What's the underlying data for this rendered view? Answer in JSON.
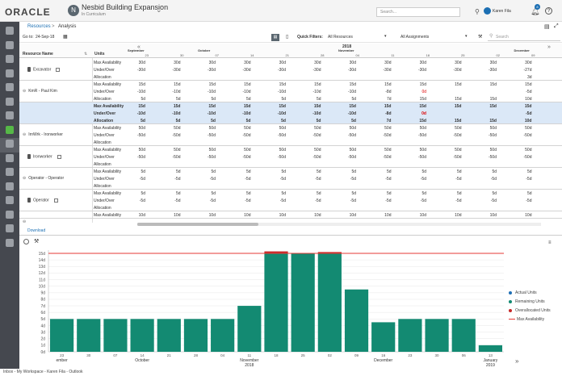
{
  "header": {
    "logo": "ORACLE",
    "project_initial": "N",
    "project_title": "Nesbid Building Expansion",
    "project_subtitle": "In Curriculum",
    "search_placeholder": "Search...",
    "user_name": "Karen Fila",
    "notification_count": "8",
    "help": "?"
  },
  "sidebar": [
    "home-icon",
    "chart-icon",
    "bank-icon",
    "globe-icon",
    "people-icon",
    "calendar-icon",
    "document-icon",
    "resources-icon",
    "list-icon",
    "gantt-icon",
    "hierarchy-icon",
    "report-icon",
    "clipboard-icon",
    "code-icon",
    "settings-icon",
    "more-icon"
  ],
  "breadcrumb": {
    "root": "Resources",
    "sep": ">",
    "current": "Analysis"
  },
  "toolbar": {
    "goto_label": "Go to:",
    "goto_date": "24-Sep-18",
    "quick_filters_label": "Quick Filters:",
    "quick_filters_value": "All Resources",
    "assignments_value": "All Assignments",
    "search_placeholder": "Search"
  },
  "grid": {
    "col_resource": "Resource Name",
    "col_units": "Units",
    "year": "2018",
    "months": [
      {
        "label": "September",
        "col": 0
      },
      {
        "label": "October",
        "col": 2
      },
      {
        "label": "November",
        "col": 6
      },
      {
        "label": "December",
        "col": 11
      }
    ],
    "days": [
      "23",
      "30",
      "07",
      "14",
      "21",
      "28",
      "04",
      "11",
      "18",
      "25",
      "02",
      "09"
    ],
    "groups": [
      {
        "name": "Excavator",
        "type": "resource",
        "rows": [
          {
            "label": "Max Availability",
            "values": [
              "30d",
              "30d",
              "30d",
              "30d",
              "30d",
              "30d",
              "30d",
              "30d",
              "30d",
              "30d",
              "30d",
              "30d"
            ]
          },
          {
            "label": "Under/Over",
            "values": [
              "-30d",
              "-30d",
              "-30d",
              "-30d",
              "-30d",
              "-30d",
              "-30d",
              "-30d",
              "-30d",
              "-30d",
              "-30d",
              "-27d"
            ]
          },
          {
            "label": "Allocation",
            "values": [
              "",
              "",
              "",
              "",
              "",
              "",
              "",
              "",
              "",
              "",
              "",
              "3d"
            ]
          }
        ]
      },
      {
        "name": "KmR - Paul Kim",
        "type": "role",
        "rows": [
          {
            "label": "Max Availability",
            "values": [
              "15d",
              "15d",
              "15d",
              "15d",
              "15d",
              "15d",
              "15d",
              "15d",
              "15d",
              "15d",
              "15d",
              "15d"
            ]
          },
          {
            "label": "Under/Over",
            "values": [
              "-10d",
              "-10d",
              "-10d",
              "-10d",
              "-10d",
              "-10d",
              "-10d",
              "-8d",
              "0d",
              "",
              "",
              "-5d"
            ]
          },
          {
            "label": "Allocation",
            "values": [
              "5d",
              "5d",
              "5d",
              "5d",
              "5d",
              "5d",
              "5d",
              "7d",
              "15d",
              "15d",
              "15d",
              "10d"
            ]
          }
        ]
      },
      {
        "name": "Paul Kim",
        "type": "resource",
        "selected": true,
        "rows": [
          {
            "label": "Max Availability",
            "values": [
              "15d",
              "15d",
              "15d",
              "15d",
              "15d",
              "15d",
              "15d",
              "15d",
              "15d",
              "15d",
              "15d",
              "15d"
            ]
          },
          {
            "label": "Under/Over",
            "values": [
              "-10d",
              "-10d",
              "-10d",
              "-10d",
              "-10d",
              "-10d",
              "-10d",
              "-8d",
              "0d",
              "",
              "",
              "-5d"
            ]
          },
          {
            "label": "Allocation",
            "values": [
              "5d",
              "5d",
              "5d",
              "5d",
              "5d",
              "5d",
              "5d",
              "7d",
              "15d",
              "15d",
              "15d",
              "10d"
            ]
          }
        ]
      },
      {
        "name": "IrnWrk - Ironworker",
        "type": "role",
        "rows": [
          {
            "label": "Max Availability",
            "values": [
              "50d",
              "50d",
              "50d",
              "50d",
              "50d",
              "50d",
              "50d",
              "50d",
              "50d",
              "50d",
              "50d",
              "50d"
            ]
          },
          {
            "label": "Under/Over",
            "values": [
              "-50d",
              "-50d",
              "-50d",
              "-50d",
              "-50d",
              "-50d",
              "-50d",
              "-50d",
              "-50d",
              "-50d",
              "-50d",
              "-50d"
            ]
          },
          {
            "label": "Allocation",
            "values": [
              "",
              "",
              "",
              "",
              "",
              "",
              "",
              "",
              "",
              "",
              "",
              ""
            ]
          }
        ]
      },
      {
        "name": "Ironworker",
        "type": "resource",
        "rows": [
          {
            "label": "Max Availability",
            "values": [
              "50d",
              "50d",
              "50d",
              "50d",
              "50d",
              "50d",
              "50d",
              "50d",
              "50d",
              "50d",
              "50d",
              "50d"
            ]
          },
          {
            "label": "Under/Over",
            "values": [
              "-50d",
              "-50d",
              "-50d",
              "-50d",
              "-50d",
              "-50d",
              "-50d",
              "-50d",
              "-50d",
              "-50d",
              "-50d",
              "-50d"
            ]
          },
          {
            "label": "Allocation",
            "values": [
              "",
              "",
              "",
              "",
              "",
              "",
              "",
              "",
              "",
              "",
              "",
              ""
            ]
          }
        ]
      },
      {
        "name": "Operator - Operator",
        "type": "role",
        "rows": [
          {
            "label": "Max Availability",
            "values": [
              "5d",
              "5d",
              "5d",
              "5d",
              "5d",
              "5d",
              "5d",
              "5d",
              "5d",
              "5d",
              "5d",
              "5d"
            ]
          },
          {
            "label": "Under/Over",
            "values": [
              "-5d",
              "-5d",
              "-5d",
              "-5d",
              "-5d",
              "-5d",
              "-5d",
              "-5d",
              "-5d",
              "-5d",
              "-5d",
              "-5d"
            ]
          },
          {
            "label": "Allocation",
            "values": [
              "",
              "",
              "",
              "",
              "",
              "",
              "",
              "",
              "",
              "",
              "",
              ""
            ]
          }
        ]
      },
      {
        "name": "Operator",
        "type": "resource",
        "rows": [
          {
            "label": "Max Availability",
            "values": [
              "5d",
              "5d",
              "5d",
              "5d",
              "5d",
              "5d",
              "5d",
              "5d",
              "5d",
              "5d",
              "5d",
              "5d"
            ]
          },
          {
            "label": "Under/Over",
            "values": [
              "-5d",
              "-5d",
              "-5d",
              "-5d",
              "-5d",
              "-5d",
              "-5d",
              "-5d",
              "-5d",
              "-5d",
              "-5d",
              "-5d"
            ]
          },
          {
            "label": "Allocation",
            "values": [
              "",
              "",
              "",
              "",
              "",
              "",
              "",
              "",
              "",
              "",
              "",
              ""
            ]
          }
        ]
      },
      {
        "name": "",
        "type": "role",
        "rows": [
          {
            "label": "Max Availability",
            "values": [
              "10d",
              "10d",
              "10d",
              "10d",
              "10d",
              "10d",
              "10d",
              "10d",
              "10d",
              "10d",
              "10d",
              "10d"
            ]
          }
        ]
      }
    ]
  },
  "download_label": "Download",
  "chart_data": {
    "type": "bar",
    "categories": [
      "23",
      "30",
      "07",
      "14",
      "21",
      "28",
      "04",
      "11",
      "18",
      "25",
      "02",
      "09",
      "16",
      "23",
      "30",
      "06",
      "13"
    ],
    "month_labels": [
      {
        "label": "ember",
        "index": 0
      },
      {
        "label": "October",
        "index": 3
      },
      {
        "label": "November",
        "index": 7
      },
      {
        "label": "December",
        "index": 12
      },
      {
        "label": "January",
        "index": 16
      }
    ],
    "year_labels": [
      {
        "label": "2018",
        "index": 7
      },
      {
        "label": "2019",
        "index": 16
      }
    ],
    "y_ticks": [
      "0d",
      "1d",
      "2d",
      "3d",
      "4d",
      "5d",
      "6d",
      "7d",
      "8d",
      "9d",
      "10d",
      "11d",
      "12d",
      "13d",
      "14d",
      "15d"
    ],
    "ylim": [
      0,
      15
    ],
    "series": [
      {
        "name": "Actual Units",
        "color": "#1f6fb5",
        "values": [
          0,
          0,
          0,
          0,
          0,
          0,
          0,
          0,
          0,
          0,
          0,
          0,
          0,
          0,
          0,
          0,
          0
        ]
      },
      {
        "name": "Remaining Units",
        "color": "#138a72",
        "values": [
          5,
          5,
          5,
          5,
          5,
          5,
          5,
          7,
          15,
          15,
          15,
          9.5,
          4.5,
          5,
          5,
          5,
          1
        ]
      },
      {
        "name": "Overallocated Units",
        "color": "#c62828",
        "values": [
          0,
          0,
          0,
          0,
          0,
          0,
          0,
          0,
          0.3,
          0,
          0.2,
          0,
          0,
          0,
          0,
          0,
          0
        ]
      }
    ],
    "max_availability": {
      "name": "Max Availability",
      "color": "#e53935",
      "value": 15
    },
    "legend_position": "right"
  },
  "status_bar": "Inbox - My Workspace - Karen Fila - Outlook"
}
